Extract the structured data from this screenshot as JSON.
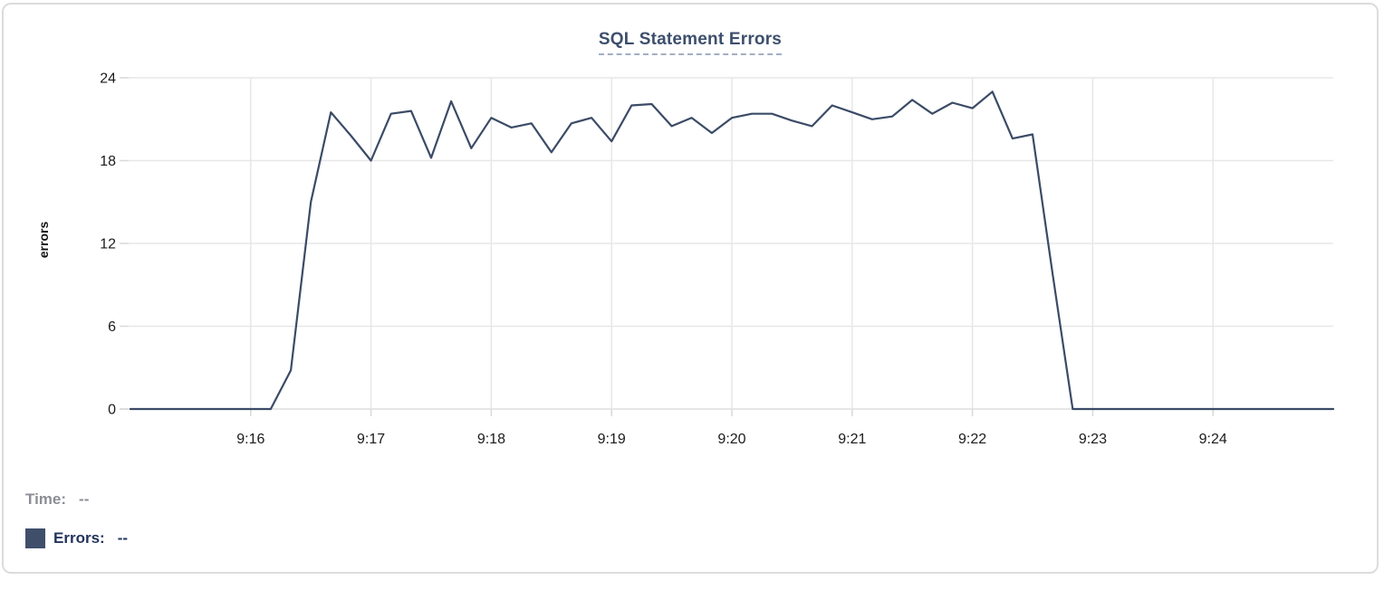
{
  "card": {
    "title": "SQL Statement Errors"
  },
  "legend": {
    "time_label": "Time:",
    "time_value": "--",
    "errors_label": "Errors:",
    "errors_value": "--"
  },
  "colors": {
    "line": "#3b4b66",
    "title": "#3d4f6d",
    "title_underline": "#a3aec3",
    "swatch": "#3f4f6a",
    "time_text": "#8b8e94",
    "errors_text": "#22345c",
    "grid": "#e7e7e7",
    "tick": "#d9d9d9",
    "axis_text": "#1b1b1b"
  },
  "chart_data": {
    "type": "line",
    "title": "SQL Statement Errors",
    "xlabel": "",
    "ylabel": "errors",
    "ylim": [
      0,
      24
    ],
    "yticks": [
      0,
      6,
      12,
      18,
      24
    ],
    "grid": true,
    "legend_position": "bottom-left",
    "xtick_labels": [
      "9:16",
      "9:17",
      "9:18",
      "9:19",
      "9:20",
      "9:21",
      "9:22",
      "9:23",
      "9:24"
    ],
    "xtick_indices": [
      6,
      12,
      18,
      24,
      30,
      36,
      42,
      48,
      54
    ],
    "series": [
      {
        "name": "Errors",
        "color": "#3b4b66",
        "x": [
          "9:15:00",
          "9:15:10",
          "9:15:20",
          "9:15:30",
          "9:15:40",
          "9:15:50",
          "9:16:00",
          "9:16:10",
          "9:16:20",
          "9:16:30",
          "9:16:40",
          "9:16:50",
          "9:17:00",
          "9:17:10",
          "9:17:20",
          "9:17:30",
          "9:17:40",
          "9:17:50",
          "9:18:00",
          "9:18:10",
          "9:18:20",
          "9:18:30",
          "9:18:40",
          "9:18:50",
          "9:19:00",
          "9:19:10",
          "9:19:20",
          "9:19:30",
          "9:19:40",
          "9:19:50",
          "9:20:00",
          "9:20:10",
          "9:20:20",
          "9:20:30",
          "9:20:40",
          "9:20:50",
          "9:21:00",
          "9:21:10",
          "9:21:20",
          "9:21:30",
          "9:21:40",
          "9:21:50",
          "9:22:00",
          "9:22:10",
          "9:22:20",
          "9:22:30",
          "9:22:40",
          "9:22:50",
          "9:23:00",
          "9:23:10",
          "9:23:20",
          "9:23:30",
          "9:23:40",
          "9:23:50",
          "9:24:00",
          "9:24:10",
          "9:24:20",
          "9:24:30",
          "9:24:40",
          "9:24:50",
          "9:25:00"
        ],
        "values": [
          0,
          0,
          0,
          0,
          0,
          0,
          0,
          0,
          2.8,
          15,
          21.5,
          19.8,
          18,
          21.4,
          21.6,
          18.2,
          22.3,
          18.9,
          21.1,
          20.4,
          20.7,
          18.6,
          20.7,
          21.1,
          19.4,
          22,
          22.1,
          20.5,
          21.1,
          20,
          21.1,
          21.4,
          21.4,
          20.9,
          20.5,
          22,
          21.5,
          21,
          21.2,
          22.4,
          21.4,
          22.2,
          21.8,
          23,
          19.6,
          19.9,
          9.8,
          0,
          0,
          0,
          0,
          0,
          0,
          0,
          0,
          0,
          0,
          0,
          0,
          0,
          0
        ]
      }
    ]
  }
}
